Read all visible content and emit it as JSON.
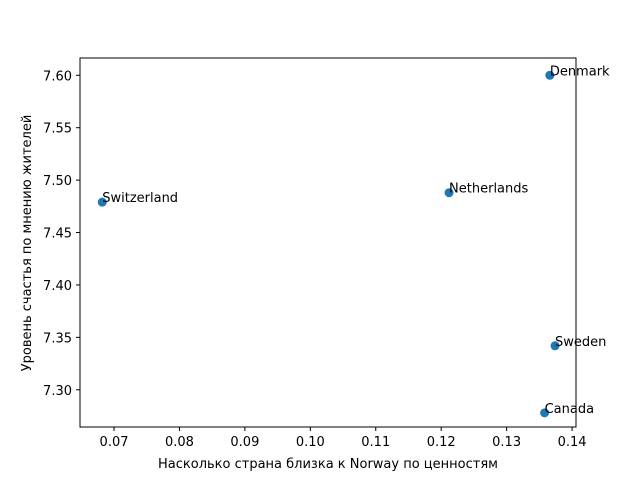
{
  "chart_data": {
    "type": "scatter",
    "title": "",
    "xlabel": "Насколько страна близка к Norway по ценностям",
    "ylabel": "Уровень счастья по мнению жителей",
    "xlim": [
      0.0648,
      0.1406
    ],
    "ylim": [
      7.2645,
      7.6165
    ],
    "xticks": [
      "0.07",
      "0.08",
      "0.09",
      "0.10",
      "0.11",
      "0.12",
      "0.13",
      "0.14"
    ],
    "xtick_values": [
      0.07,
      0.08,
      0.09,
      0.1,
      0.11,
      0.12,
      0.13,
      0.14
    ],
    "yticks": [
      "7.30",
      "7.35",
      "7.40",
      "7.45",
      "7.50",
      "7.55",
      "7.60"
    ],
    "ytick_values": [
      7.3,
      7.35,
      7.4,
      7.45,
      7.5,
      7.55,
      7.6
    ],
    "grid": false,
    "point_color": "#1f77b4",
    "points": [
      {
        "label": "Denmark",
        "x": 0.1366,
        "y": 7.6
      },
      {
        "label": "Switzerland",
        "x": 0.0682,
        "y": 7.479
      },
      {
        "label": "Netherlands",
        "x": 0.1212,
        "y": 7.488
      },
      {
        "label": "Sweden",
        "x": 0.1374,
        "y": 7.342
      },
      {
        "label": "Canada",
        "x": 0.1358,
        "y": 7.278
      }
    ]
  }
}
